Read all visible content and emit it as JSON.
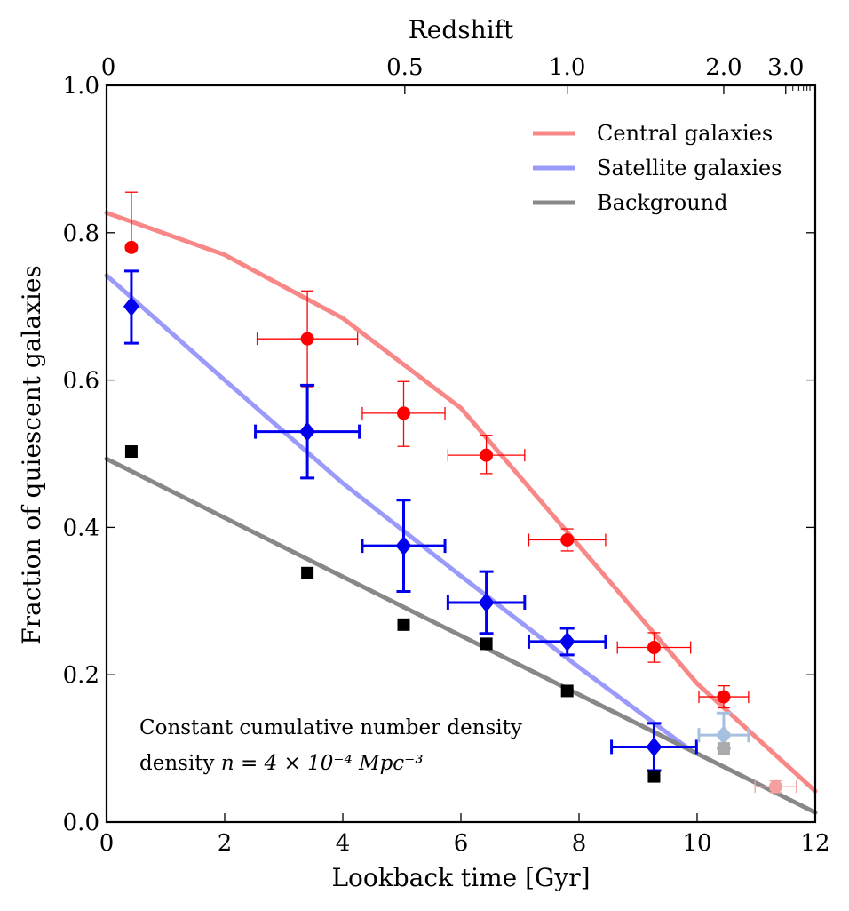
{
  "chart_data": {
    "type": "scatter",
    "xlabel": "Lookback time [Gyr]",
    "ylabel": "Fraction of quiescent galaxies",
    "top_xlabel": "Redshift",
    "xlim": [
      0,
      12
    ],
    "ylim": [
      0.0,
      1.0
    ],
    "x_ticks": [
      0,
      2,
      4,
      6,
      8,
      10,
      12
    ],
    "y_ticks": [
      0.0,
      0.2,
      0.4,
      0.6,
      0.8,
      1.0
    ],
    "redshift_ticks": [
      {
        "label": "0",
        "lookback": 0.0
      },
      {
        "label": "0.5",
        "lookback": 5.05
      },
      {
        "label": "1.0",
        "lookback": 7.8
      },
      {
        "label": "2.0",
        "lookback": 10.45
      },
      {
        "label": "3.0",
        "lookback": 11.5
      }
    ],
    "legend_position": "top-right",
    "annotation": "Constant cumulative number density",
    "annotation_math": "n = 4 × 10⁻⁴ Mpc⁻³",
    "annotation_prefix": "density",
    "series": [
      {
        "name": "Central galaxies",
        "marker": "circle",
        "color": "#ff0000",
        "fit_color": "#f88888",
        "fit": [
          [
            0,
            0.827
          ],
          [
            2,
            0.77
          ],
          [
            4,
            0.684
          ],
          [
            6,
            0.562
          ],
          [
            8,
            0.375
          ],
          [
            10,
            0.188
          ],
          [
            12,
            0.042
          ]
        ],
        "points": [
          {
            "x": 0.42,
            "y": 0.78,
            "xerr": 0.0,
            "yerr_low": 0.0,
            "yerr_high": 0.075
          },
          {
            "x": 3.4,
            "y": 0.656,
            "xerr": 0.85,
            "yerr_low": 0.065,
            "yerr_high": 0.065
          },
          {
            "x": 5.03,
            "y": 0.555,
            "xerr": 0.7,
            "yerr_low": 0.045,
            "yerr_high": 0.043
          },
          {
            "x": 6.43,
            "y": 0.498,
            "xerr": 0.65,
            "yerr_low": 0.025,
            "yerr_high": 0.027
          },
          {
            "x": 7.8,
            "y": 0.383,
            "xerr": 0.65,
            "yerr_low": 0.015,
            "yerr_high": 0.015
          },
          {
            "x": 9.27,
            "y": 0.237,
            "xerr": 0.62,
            "yerr_low": 0.02,
            "yerr_high": 0.02
          },
          {
            "x": 10.45,
            "y": 0.17,
            "xerr": 0.42,
            "yerr_low": 0.015,
            "yerr_high": 0.015
          },
          {
            "x": 11.33,
            "y": 0.048,
            "xerr": 0.35,
            "yerr_low": 0.008,
            "yerr_high": 0.008,
            "faded": true
          }
        ]
      },
      {
        "name": "Satellite galaxies",
        "marker": "diamond",
        "color": "#0000ee",
        "fit_color": "#9a9afa",
        "fit": [
          [
            0,
            0.742
          ],
          [
            2,
            0.6
          ],
          [
            4,
            0.46
          ],
          [
            6,
            0.334
          ],
          [
            8,
            0.21
          ],
          [
            9.85,
            0.1
          ]
        ],
        "points": [
          {
            "x": 0.42,
            "y": 0.7,
            "xerr": 0.0,
            "yerr_low": 0.05,
            "yerr_high": 0.048
          },
          {
            "x": 3.4,
            "y": 0.53,
            "xerr": 0.88,
            "yerr_low": 0.063,
            "yerr_high": 0.063
          },
          {
            "x": 5.03,
            "y": 0.375,
            "xerr": 0.7,
            "yerr_low": 0.062,
            "yerr_high": 0.062
          },
          {
            "x": 6.43,
            "y": 0.298,
            "xerr": 0.65,
            "yerr_low": 0.042,
            "yerr_high": 0.042
          },
          {
            "x": 7.8,
            "y": 0.245,
            "xerr": 0.65,
            "yerr_low": 0.018,
            "yerr_high": 0.018
          },
          {
            "x": 9.27,
            "y": 0.102,
            "xerr": 0.72,
            "yerr_low": 0.032,
            "yerr_high": 0.032
          },
          {
            "x": 10.45,
            "y": 0.118,
            "xerr": 0.42,
            "yerr_low": 0.018,
            "yerr_high": 0.03,
            "faded": true
          }
        ]
      },
      {
        "name": "Background",
        "marker": "square",
        "color": "#000000",
        "fit_color": "#888888",
        "fit": [
          [
            0,
            0.493
          ],
          [
            12,
            0.013
          ]
        ],
        "points": [
          {
            "x": 0.42,
            "y": 0.503
          },
          {
            "x": 3.4,
            "y": 0.338
          },
          {
            "x": 5.03,
            "y": 0.268
          },
          {
            "x": 6.43,
            "y": 0.242
          },
          {
            "x": 7.8,
            "y": 0.178
          },
          {
            "x": 9.27,
            "y": 0.062
          },
          {
            "x": 10.45,
            "y": 0.1,
            "faded": true
          }
        ]
      }
    ]
  }
}
